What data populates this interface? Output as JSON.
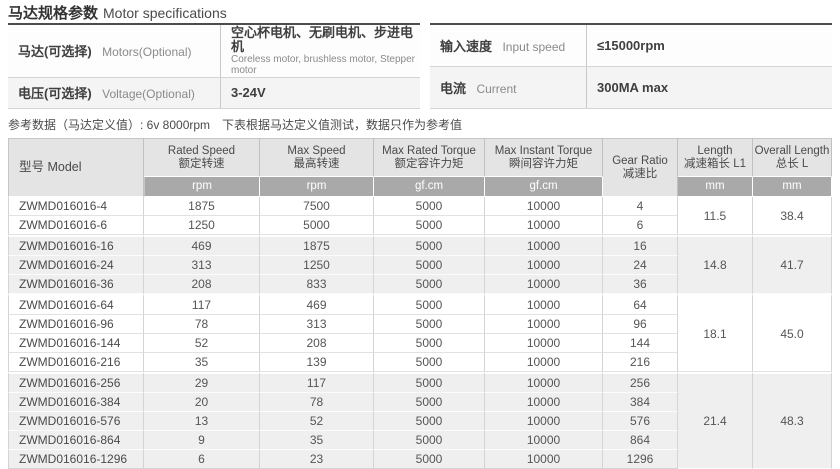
{
  "title": {
    "zh": "马达规格参数",
    "en": "Motor specifications"
  },
  "info_tables": {
    "left": [
      {
        "label_zh": "马达(可选择)",
        "label_en": "Motors(Optional)",
        "value": "空心杯电机、无刷电机、步进电机",
        "subvalue": "Coreless motor, brushless motor, Stepper motor"
      },
      {
        "label_zh": "电压(可选择)",
        "label_en": "Voltage(Optional)",
        "value": "3-24V",
        "subvalue": ""
      }
    ],
    "right": [
      {
        "label_zh": "输入速度",
        "label_en": "Input speed",
        "value": "≤15000rpm"
      },
      {
        "label_zh": "电流",
        "label_en": "Current",
        "value": "300MA max"
      }
    ]
  },
  "note": "参考数据（马达定义值）: 6v 8000rpm　下表根据马达定义值测试，数据只作为参考值",
  "spec_table": {
    "model_header": "型号 Model",
    "columns": [
      {
        "en": "Rated Speed",
        "zh": "额定转速",
        "unit": "rpm"
      },
      {
        "en": "Max Speed",
        "zh": "最高转速",
        "unit": "rpm"
      },
      {
        "en": "Max Rated Torque",
        "zh": "额定容许力矩",
        "unit": "gf.cm"
      },
      {
        "en": "Max Instant Torque",
        "zh": "瞬间容许力矩",
        "unit": "gf.cm"
      },
      {
        "en": "Gear Ratio",
        "zh": "减速比",
        "unit": ""
      },
      {
        "en": "Length",
        "zh": "减速箱长 L1",
        "unit": "mm"
      },
      {
        "en": "Overall Length",
        "zh": "总长 L",
        "unit": "mm"
      }
    ],
    "groups": [
      {
        "length_l1": "11.5",
        "overall_length": "38.4",
        "rows": [
          {
            "model": "ZWMD016016-4",
            "rated_speed": "1875",
            "max_speed": "7500",
            "max_rated_torque": "5000",
            "max_instant_torque": "10000",
            "gear_ratio": "4"
          },
          {
            "model": "ZWMD016016-6",
            "rated_speed": "1250",
            "max_speed": "5000",
            "max_rated_torque": "5000",
            "max_instant_torque": "10000",
            "gear_ratio": "6"
          }
        ]
      },
      {
        "length_l1": "14.8",
        "overall_length": "41.7",
        "rows": [
          {
            "model": "ZWMD016016-16",
            "rated_speed": "469",
            "max_speed": "1875",
            "max_rated_torque": "5000",
            "max_instant_torque": "10000",
            "gear_ratio": "16"
          },
          {
            "model": "ZWMD016016-24",
            "rated_speed": "313",
            "max_speed": "1250",
            "max_rated_torque": "5000",
            "max_instant_torque": "10000",
            "gear_ratio": "24"
          },
          {
            "model": "ZWMD016016-36",
            "rated_speed": "208",
            "max_speed": "833",
            "max_rated_torque": "5000",
            "max_instant_torque": "10000",
            "gear_ratio": "36"
          }
        ]
      },
      {
        "length_l1": "18.1",
        "overall_length": "45.0",
        "rows": [
          {
            "model": "ZWMD016016-64",
            "rated_speed": "117",
            "max_speed": "469",
            "max_rated_torque": "5000",
            "max_instant_torque": "10000",
            "gear_ratio": "64"
          },
          {
            "model": "ZWMD016016-96",
            "rated_speed": "78",
            "max_speed": "313",
            "max_rated_torque": "5000",
            "max_instant_torque": "10000",
            "gear_ratio": "96"
          },
          {
            "model": "ZWMD016016-144",
            "rated_speed": "52",
            "max_speed": "208",
            "max_rated_torque": "5000",
            "max_instant_torque": "10000",
            "gear_ratio": "144"
          },
          {
            "model": "ZWMD016016-216",
            "rated_speed": "35",
            "max_speed": "139",
            "max_rated_torque": "5000",
            "max_instant_torque": "10000",
            "gear_ratio": "216"
          }
        ]
      },
      {
        "length_l1": "21.4",
        "overall_length": "48.3",
        "rows": [
          {
            "model": "ZWMD016016-256",
            "rated_speed": "29",
            "max_speed": "117",
            "max_rated_torque": "5000",
            "max_instant_torque": "10000",
            "gear_ratio": "256"
          },
          {
            "model": "ZWMD016016-384",
            "rated_speed": "20",
            "max_speed": "78",
            "max_rated_torque": "5000",
            "max_instant_torque": "10000",
            "gear_ratio": "384"
          },
          {
            "model": "ZWMD016016-576",
            "rated_speed": "13",
            "max_speed": "52",
            "max_rated_torque": "5000",
            "max_instant_torque": "10000",
            "gear_ratio": "576"
          },
          {
            "model": "ZWMD016016-864",
            "rated_speed": "9",
            "max_speed": "35",
            "max_rated_torque": "5000",
            "max_instant_torque": "10000",
            "gear_ratio": "864"
          },
          {
            "model": "ZWMD016016-1296",
            "rated_speed": "6",
            "max_speed": "23",
            "max_rated_torque": "5000",
            "max_instant_torque": "10000",
            "gear_ratio": "1296"
          }
        ]
      }
    ]
  },
  "colors": {
    "accent_border": "#4d4d4d",
    "header_bg": "#e4e4e4",
    "unit_bar_bg": "#a9a9a9",
    "group_alt_bg": "#efefef"
  }
}
